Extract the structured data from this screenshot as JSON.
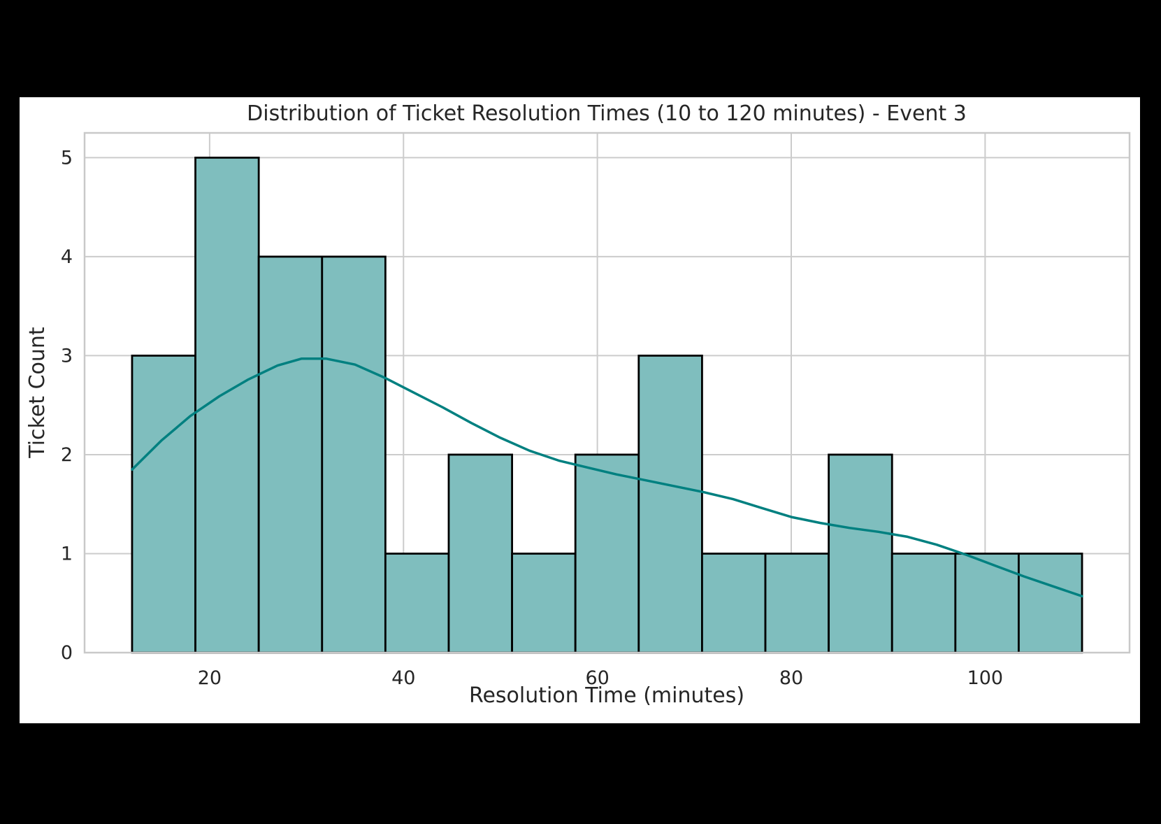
{
  "page": {
    "background": "#000000"
  },
  "chart_data": {
    "type": "bar",
    "subtype": "histogram_with_kde",
    "title": "Distribution of Ticket Resolution Times (10 to 120 minutes) - Event 3",
    "xlabel": "Resolution Time (minutes)",
    "ylabel": "Ticket Count",
    "grid": true,
    "legend": null,
    "xlim": [
      7.1,
      114.9
    ],
    "ylim": [
      0,
      5.25
    ],
    "xticks": [
      20,
      40,
      60,
      80,
      100
    ],
    "yticks": [
      0,
      1,
      2,
      3,
      4,
      5
    ],
    "bin_edges": [
      12,
      18.5333,
      25.0667,
      31.6,
      38.1333,
      44.6667,
      51.2,
      57.7333,
      64.2667,
      70.8,
      77.3333,
      83.8667,
      90.4,
      96.9333,
      103.4667,
      110
    ],
    "values": [
      3,
      5,
      4,
      4,
      1,
      2,
      1,
      2,
      3,
      1,
      1,
      2,
      1,
      1,
      1
    ],
    "total_tickets": 32,
    "kde_series": {
      "name": "kde",
      "x": [
        12,
        15,
        18,
        21,
        24,
        27,
        29.5,
        32,
        35,
        38,
        41,
        44,
        47,
        50,
        53,
        56,
        59,
        62,
        65,
        68,
        71,
        74,
        77,
        80,
        83,
        86,
        89,
        92,
        95,
        98,
        101,
        104,
        107,
        110
      ],
      "y": [
        1.85,
        2.14,
        2.39,
        2.59,
        2.76,
        2.9,
        2.97,
        2.97,
        2.91,
        2.78,
        2.63,
        2.48,
        2.32,
        2.17,
        2.04,
        1.94,
        1.87,
        1.8,
        1.74,
        1.68,
        1.62,
        1.55,
        1.46,
        1.37,
        1.31,
        1.26,
        1.22,
        1.17,
        1.09,
        0.99,
        0.88,
        0.77,
        0.67,
        0.57
      ]
    },
    "colors": {
      "bar_fill": "#7fbebe",
      "bar_edge": "#000000",
      "kde_line": "#008080",
      "grid": "#cccccc",
      "spine": "#c9c9c9",
      "text": "#262626",
      "figure_background": "#ffffff",
      "page_background": "#000000"
    }
  }
}
